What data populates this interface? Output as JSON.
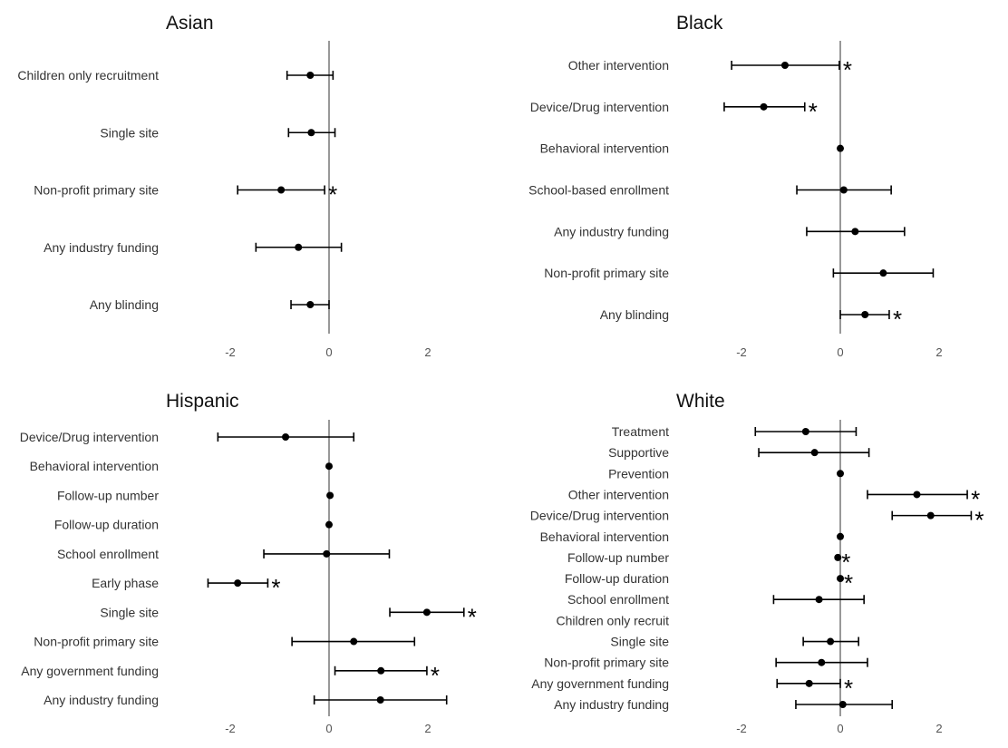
{
  "chart_data": [
    {
      "type": "forest",
      "title": "Asian",
      "xlim": [
        -2.7,
        2.7
      ],
      "xticks": [
        "-2",
        "0",
        "2"
      ],
      "xtick_values": [
        -2,
        0,
        2
      ],
      "marker": "*",
      "items": [
        {
          "label": "Children only recruitment",
          "est": -0.38,
          "lo": -0.85,
          "hi": 0.08,
          "sig": false
        },
        {
          "label": "Single site",
          "est": -0.36,
          "lo": -0.82,
          "hi": 0.12,
          "sig": false
        },
        {
          "label": "Non-profit primary site",
          "est": -0.97,
          "lo": -1.85,
          "hi": -0.09,
          "sig": true
        },
        {
          "label": "Any industry funding",
          "est": -0.62,
          "lo": -1.48,
          "hi": 0.25,
          "sig": false
        },
        {
          "label": "Any blinding",
          "est": -0.38,
          "lo": -0.77,
          "hi": 0.0,
          "sig": false
        }
      ]
    },
    {
      "type": "forest",
      "title": "Black",
      "xlim": [
        -2.7,
        2.7
      ],
      "xticks": [
        "-2",
        "0",
        "2"
      ],
      "xtick_values": [
        -2,
        0,
        2
      ],
      "marker": "*",
      "items": [
        {
          "label": "Other intervention",
          "est": -1.12,
          "lo": -2.2,
          "hi": -0.02,
          "sig": true
        },
        {
          "label": "Device/Drug intervention",
          "est": -1.55,
          "lo": -2.35,
          "hi": -0.72,
          "sig": true
        },
        {
          "label": "Behavioral intervention",
          "est": 0.0,
          "lo": 0.0,
          "hi": 0.0,
          "sig": false
        },
        {
          "label": "School-based enrollment",
          "est": 0.07,
          "lo": -0.88,
          "hi": 1.03,
          "sig": false
        },
        {
          "label": "Any industry funding",
          "est": 0.3,
          "lo": -0.68,
          "hi": 1.3,
          "sig": false
        },
        {
          "label": "Non-profit primary site",
          "est": 0.87,
          "lo": -0.14,
          "hi": 1.88,
          "sig": false
        },
        {
          "label": "Any blinding",
          "est": 0.5,
          "lo": 0.0,
          "hi": 0.99,
          "sig": true
        }
      ]
    },
    {
      "type": "forest",
      "title": "Hispanic",
      "xlim": [
        -2.7,
        2.7
      ],
      "xticks": [
        "-2",
        "0",
        "2"
      ],
      "xtick_values": [
        -2,
        0,
        2
      ],
      "marker": "*",
      "items": [
        {
          "label": "Device/Drug intervention",
          "est": -0.88,
          "lo": -2.25,
          "hi": 0.5,
          "sig": false
        },
        {
          "label": "Behavioral intervention",
          "est": 0.0,
          "lo": 0.0,
          "hi": 0.0,
          "sig": false
        },
        {
          "label": "Follow-up number",
          "est": 0.02,
          "lo": 0.02,
          "hi": 0.02,
          "sig": false
        },
        {
          "label": "Follow-up duration",
          "est": 0.0,
          "lo": 0.0,
          "hi": 0.0,
          "sig": false
        },
        {
          "label": "School enrollment",
          "est": -0.05,
          "lo": -1.32,
          "hi": 1.22,
          "sig": false
        },
        {
          "label": "Early phase",
          "est": -1.85,
          "lo": -2.45,
          "hi": -1.24,
          "sig": true
        },
        {
          "label": "Single site",
          "est": 1.98,
          "lo": 1.23,
          "hi": 2.73,
          "sig": true
        },
        {
          "label": "Non-profit primary site",
          "est": 0.5,
          "lo": -0.75,
          "hi": 1.73,
          "sig": false
        },
        {
          "label": "Any government funding",
          "est": 1.05,
          "lo": 0.12,
          "hi": 1.98,
          "sig": true
        },
        {
          "label": "Any industry funding",
          "est": 1.04,
          "lo": -0.3,
          "hi": 2.38,
          "sig": false
        }
      ]
    },
    {
      "type": "forest",
      "title": "White",
      "xlim": [
        -2.7,
        2.7
      ],
      "xticks": [
        "-2",
        "0",
        "2"
      ],
      "xtick_values": [
        -2,
        0,
        2
      ],
      "marker": "*",
      "items": [
        {
          "label": "Treatment",
          "est": -0.7,
          "lo": -1.72,
          "hi": 0.32,
          "sig": false
        },
        {
          "label": "Supportive",
          "est": -0.52,
          "lo": -1.65,
          "hi": 0.58,
          "sig": false
        },
        {
          "label": "Prevention",
          "est": 0.0,
          "lo": 0.0,
          "hi": 0.0,
          "sig": false
        },
        {
          "label": "Other intervention",
          "est": 1.55,
          "lo": 0.55,
          "hi": 2.57,
          "sig": true
        },
        {
          "label": "Device/Drug intervention",
          "est": 1.83,
          "lo": 1.05,
          "hi": 2.65,
          "sig": true
        },
        {
          "label": "Behavioral intervention",
          "est": 0.0,
          "lo": 0.0,
          "hi": 0.0,
          "sig": false
        },
        {
          "label": "Follow-up number",
          "est": -0.05,
          "lo": -0.05,
          "hi": -0.05,
          "sig": true
        },
        {
          "label": "Follow-up duration",
          "est": 0.0,
          "lo": 0.0,
          "hi": 0.0,
          "sig": true
        },
        {
          "label": "School enrollment",
          "est": -0.43,
          "lo": -1.35,
          "hi": 0.48,
          "sig": false
        },
        {
          "label": "Children only recruit",
          "est": null,
          "lo": null,
          "hi": null,
          "sig": false
        },
        {
          "label": "Single site",
          "est": -0.2,
          "lo": -0.75,
          "hi": 0.37,
          "sig": false
        },
        {
          "label": "Non-profit primary site",
          "est": -0.38,
          "lo": -1.3,
          "hi": 0.55,
          "sig": false
        },
        {
          "label": "Any government funding",
          "est": -0.63,
          "lo": -1.28,
          "hi": 0.0,
          "sig": true
        },
        {
          "label": "Any industry funding",
          "est": 0.05,
          "lo": -0.9,
          "hi": 1.05,
          "sig": false
        }
      ]
    }
  ]
}
